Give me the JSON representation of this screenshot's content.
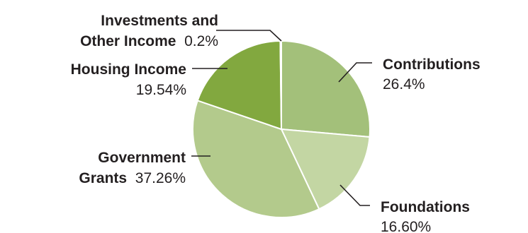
{
  "chart_data": {
    "type": "pie",
    "slices": [
      {
        "label": [
          "Contributions"
        ],
        "value_text": "26.4%",
        "value": 26.4,
        "color": "#a3c07a"
      },
      {
        "label": [
          "Foundations"
        ],
        "value_text": "16.60%",
        "value": 16.6,
        "color": "#c3d6a3"
      },
      {
        "label": [
          "Government",
          "Grants"
        ],
        "value_text": "37.26%",
        "value": 37.26,
        "color": "#b3ca8c"
      },
      {
        "label": [
          "Housing Income"
        ],
        "value_text": "19.54%",
        "value": 19.54,
        "color": "#82a83f"
      },
      {
        "label": [
          "Investments and",
          "Other Income"
        ],
        "value_text": "0.2%",
        "value": 0.2,
        "color": "#9fbe70"
      }
    ],
    "start_angle_deg": 0,
    "direction": "clockwise",
    "slice_border_color": "#ffffff",
    "label_color": "#231f20",
    "leader_color": "#231f20"
  }
}
